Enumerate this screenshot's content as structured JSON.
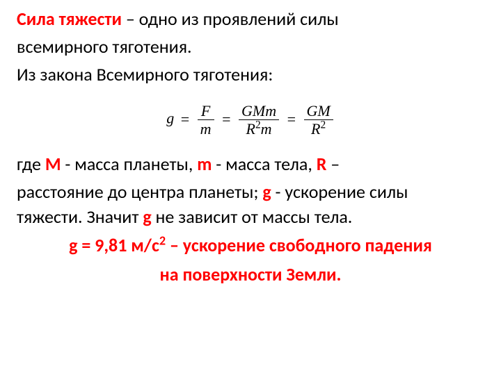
{
  "colors": {
    "accent": "#ff0000",
    "text": "#000000",
    "background": "#ffffff"
  },
  "typography": {
    "body_fontsize_pt": 20,
    "body_font": "Calibri",
    "formula_font": "Times New Roman",
    "formula_fontsize_pt": 17
  },
  "line1": {
    "term": "Сила тяжести",
    "rest": " – одно из проявлений силы"
  },
  "line2": "всемирного тяготения.",
  "line3": "Из закона Всемирного тяготения:",
  "formula": {
    "lhs": "g",
    "eq": " = ",
    "frac1": {
      "num": "F",
      "den": "m"
    },
    "frac2": {
      "num": "GMm",
      "den_base": "R",
      "den_sup": "2",
      "den_tail": "m"
    },
    "frac3": {
      "num": "GM",
      "den_base": "R",
      "den_sup": "2"
    }
  },
  "line4": {
    "pre": "где ",
    "M": "M",
    "afterM": " - масса планеты, ",
    "m": "m",
    "afterm": " - масса тела, ",
    "R": "R",
    "afterR": " –"
  },
  "line5": {
    "pre": "расстояние до центра планеты; ",
    "g": "g",
    "afterg": " - ускорение силы"
  },
  "line6": {
    "pre": "тяжести. Значит ",
    "g": "g",
    "afterg": " не зависит от массы тела."
  },
  "final": {
    "line1_pre": "g = 9,81 м/с",
    "line1_sup": "2",
    "line1_post": " – ускорение свободного падения",
    "line2": "на поверхности Земли."
  }
}
